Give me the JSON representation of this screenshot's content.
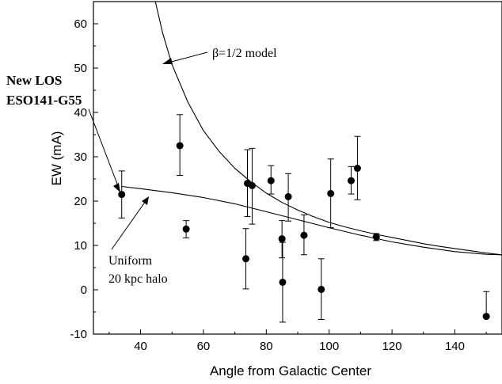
{
  "chart_data": {
    "type": "scatter",
    "xlabel": "Angle from Galactic Center",
    "ylabel": "EW (mA)",
    "xlim": [
      25,
      155
    ],
    "ylim": [
      -10,
      65
    ],
    "xticks": [
      40,
      60,
      80,
      100,
      120,
      140
    ],
    "yticks": [
      -10,
      0,
      10,
      20,
      30,
      40,
      50,
      60
    ],
    "points": [
      {
        "x": 34,
        "y": 21.5,
        "yerr_low": 5.3,
        "yerr_high": 5.3
      },
      {
        "x": 52.5,
        "y": 32.5,
        "yerr_low": 6.7,
        "yerr_high": 7.0
      },
      {
        "x": 54.5,
        "y": 13.7,
        "yerr_low": 2.0,
        "yerr_high": 1.9
      },
      {
        "x": 73.5,
        "y": 7.0,
        "yerr_low": 6.8,
        "yerr_high": 6.8
      },
      {
        "x": 74,
        "y": 24.0,
        "yerr_low": 7.5,
        "yerr_high": 7.6
      },
      {
        "x": 75.5,
        "y": 23.5,
        "yerr_low": 8.7,
        "yerr_high": 8.4
      },
      {
        "x": 81.5,
        "y": 24.6,
        "yerr_low": 3.0,
        "yerr_high": 3.4
      },
      {
        "x": 85,
        "y": 11.5,
        "yerr_low": 4.3,
        "yerr_high": 4.1
      },
      {
        "x": 85.2,
        "y": 1.7,
        "yerr_low": 9.0,
        "yerr_high": 9.0
      },
      {
        "x": 87,
        "y": 21.0,
        "yerr_low": 5.5,
        "yerr_high": 5.2
      },
      {
        "x": 92,
        "y": 12.3,
        "yerr_low": 4.4,
        "yerr_high": 4.6
      },
      {
        "x": 97.5,
        "y": 0.1,
        "yerr_low": 6.8,
        "yerr_high": 6.9
      },
      {
        "x": 100.5,
        "y": 21.7,
        "yerr_low": 7.7,
        "yerr_high": 7.8
      },
      {
        "x": 107,
        "y": 24.6,
        "yerr_low": 3.0,
        "yerr_high": 3.2
      },
      {
        "x": 109,
        "y": 27.4,
        "yerr_low": 7.1,
        "yerr_high": 7.2
      },
      {
        "x": 115,
        "y": 11.9,
        "yerr_low": 0.8,
        "yerr_high": 0.8
      },
      {
        "x": 150,
        "y": -6.0,
        "yerr_low": 0,
        "yerr_high": 5.6
      }
    ],
    "curves": [
      {
        "name": "β=1/2 model",
        "x": [
          44.7,
          47,
          50,
          55,
          60,
          65,
          70,
          75,
          80,
          85,
          90,
          95,
          100,
          105,
          110,
          115,
          120,
          125,
          130,
          135,
          140,
          145,
          150,
          155
        ],
        "y": [
          65,
          58.0,
          50.8,
          42.4,
          35.9,
          31.2,
          27.4,
          24.4,
          21.8,
          19.7,
          18.0,
          16.5,
          15.2,
          14.2,
          13.3,
          12.5,
          11.8,
          11.1,
          10.4,
          9.8,
          9.3,
          8.8,
          8.3,
          7.9
        ]
      },
      {
        "name": "Uniform 20 kpc halo",
        "x": [
          34,
          40,
          50,
          60,
          70,
          80,
          90,
          100,
          110,
          120,
          130,
          140,
          150,
          155
        ],
        "y": [
          23.3,
          22.8,
          21.9,
          20.8,
          19.4,
          17.6,
          15.8,
          14.0,
          12.3,
          10.8,
          9.6,
          8.6,
          8.0,
          7.9
        ]
      }
    ],
    "annotations": {
      "beta_model": "β=1/2 model",
      "new_los_line1": "New LOS",
      "new_los_line2": "ESO141-G55",
      "uniform_line1": "Uniform",
      "uniform_line2": "20 kpc halo"
    }
  }
}
